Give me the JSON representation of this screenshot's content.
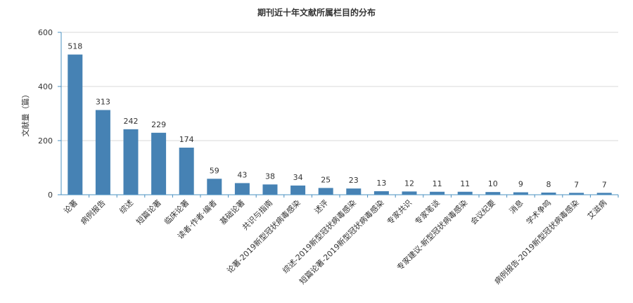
{
  "chart_data": {
    "type": "bar",
    "title": "期刊近十年文献所属栏目的分布",
    "ylabel": "文献量（篇）",
    "xlabel": "",
    "ylim": [
      0,
      600
    ],
    "yticks": [
      0,
      200,
      400,
      600
    ],
    "grid": true,
    "bar_color": "#4682b4",
    "categories": [
      "论著",
      "病例报告",
      "综述",
      "短篇论著",
      "临床论著",
      "读者·作者·编者",
      "基础论著",
      "共识与指南",
      "论著-2019新型冠状病毒感染",
      "述评",
      "综述-2019新型冠状病毒感染",
      "短篇论著-2019新型冠状病毒感染",
      "专家共识",
      "专家笔谈",
      "专家建议-新型冠状病毒感染",
      "会议纪要",
      "消息",
      "学术争鸣",
      "病例报告-2019新型冠状病毒感染",
      "艾滋病"
    ],
    "values": [
      518,
      313,
      242,
      229,
      174,
      59,
      43,
      38,
      34,
      25,
      23,
      13,
      12,
      11,
      11,
      10,
      9,
      8,
      7,
      7
    ]
  }
}
